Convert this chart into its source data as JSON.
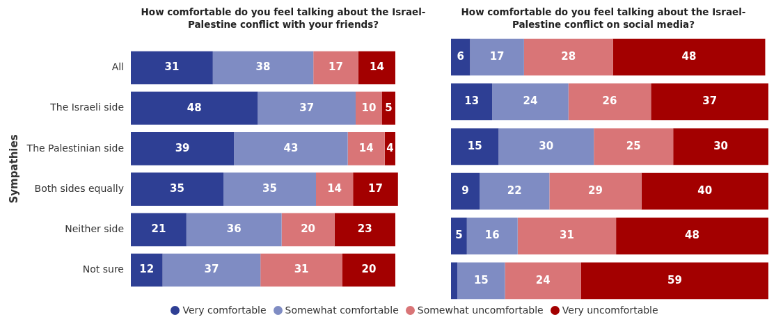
{
  "chart_data": [
    {
      "type": "bar",
      "orientation": "horizontal",
      "stacked": true,
      "title": "How comfortable do you feel talking about the Israel-Palestine conflict with your friends?",
      "ylabel": "Sympathies",
      "categories": [
        "All",
        "The Israeli side",
        "The Palestinian side",
        "Both sides equally",
        "Neither side",
        "Not sure"
      ],
      "tick_labels": "y",
      "grid": false,
      "legend": "bottom",
      "data_labels": true,
      "series": [
        {
          "name": "Very comfortable",
          "color": "#2e3f94",
          "values": [
            31,
            48,
            39,
            35,
            21,
            12
          ]
        },
        {
          "name": "Somewhat comfortable",
          "color": "#7f8cc3",
          "values": [
            38,
            37,
            43,
            35,
            36,
            37
          ]
        },
        {
          "name": "Somewhat uncomfortable",
          "color": "#d97577",
          "values": [
            17,
            10,
            14,
            14,
            20,
            31
          ]
        },
        {
          "name": "Very uncomfortable",
          "color": "#a30000",
          "values": [
            14,
            5,
            4,
            17,
            23,
            20
          ]
        }
      ]
    },
    {
      "type": "bar",
      "orientation": "horizontal",
      "stacked": true,
      "title": "How comfortable do you feel talking about the Israel-Palestine conflict on social media?",
      "categories": [
        null,
        null,
        null,
        null,
        null,
        null
      ],
      "tick_labels": false,
      "grid": false,
      "series": [
        {
          "color": "#2e3f94",
          "values": [
            6,
            13,
            15,
            9,
            5,
            2
          ],
          "value_labels": [
            "6",
            "13",
            "15",
            "9",
            "5",
            null
          ]
        },
        {
          "color": "#7f8cc3",
          "values": [
            17,
            24,
            30,
            22,
            16,
            15
          ],
          "value_labels": [
            "17",
            "24",
            "30",
            "22",
            "16",
            "15"
          ]
        },
        {
          "color": "#d97577",
          "values": [
            28,
            26,
            25,
            29,
            31,
            24
          ],
          "value_labels": [
            "28",
            "26",
            "25",
            "29",
            "31",
            "24"
          ]
        },
        {
          "color": "#a30000",
          "values": [
            48,
            37,
            30,
            40,
            48,
            59
          ],
          "value_labels": [
            "48",
            "37",
            "30",
            "40",
            "48",
            "59"
          ]
        }
      ]
    }
  ]
}
